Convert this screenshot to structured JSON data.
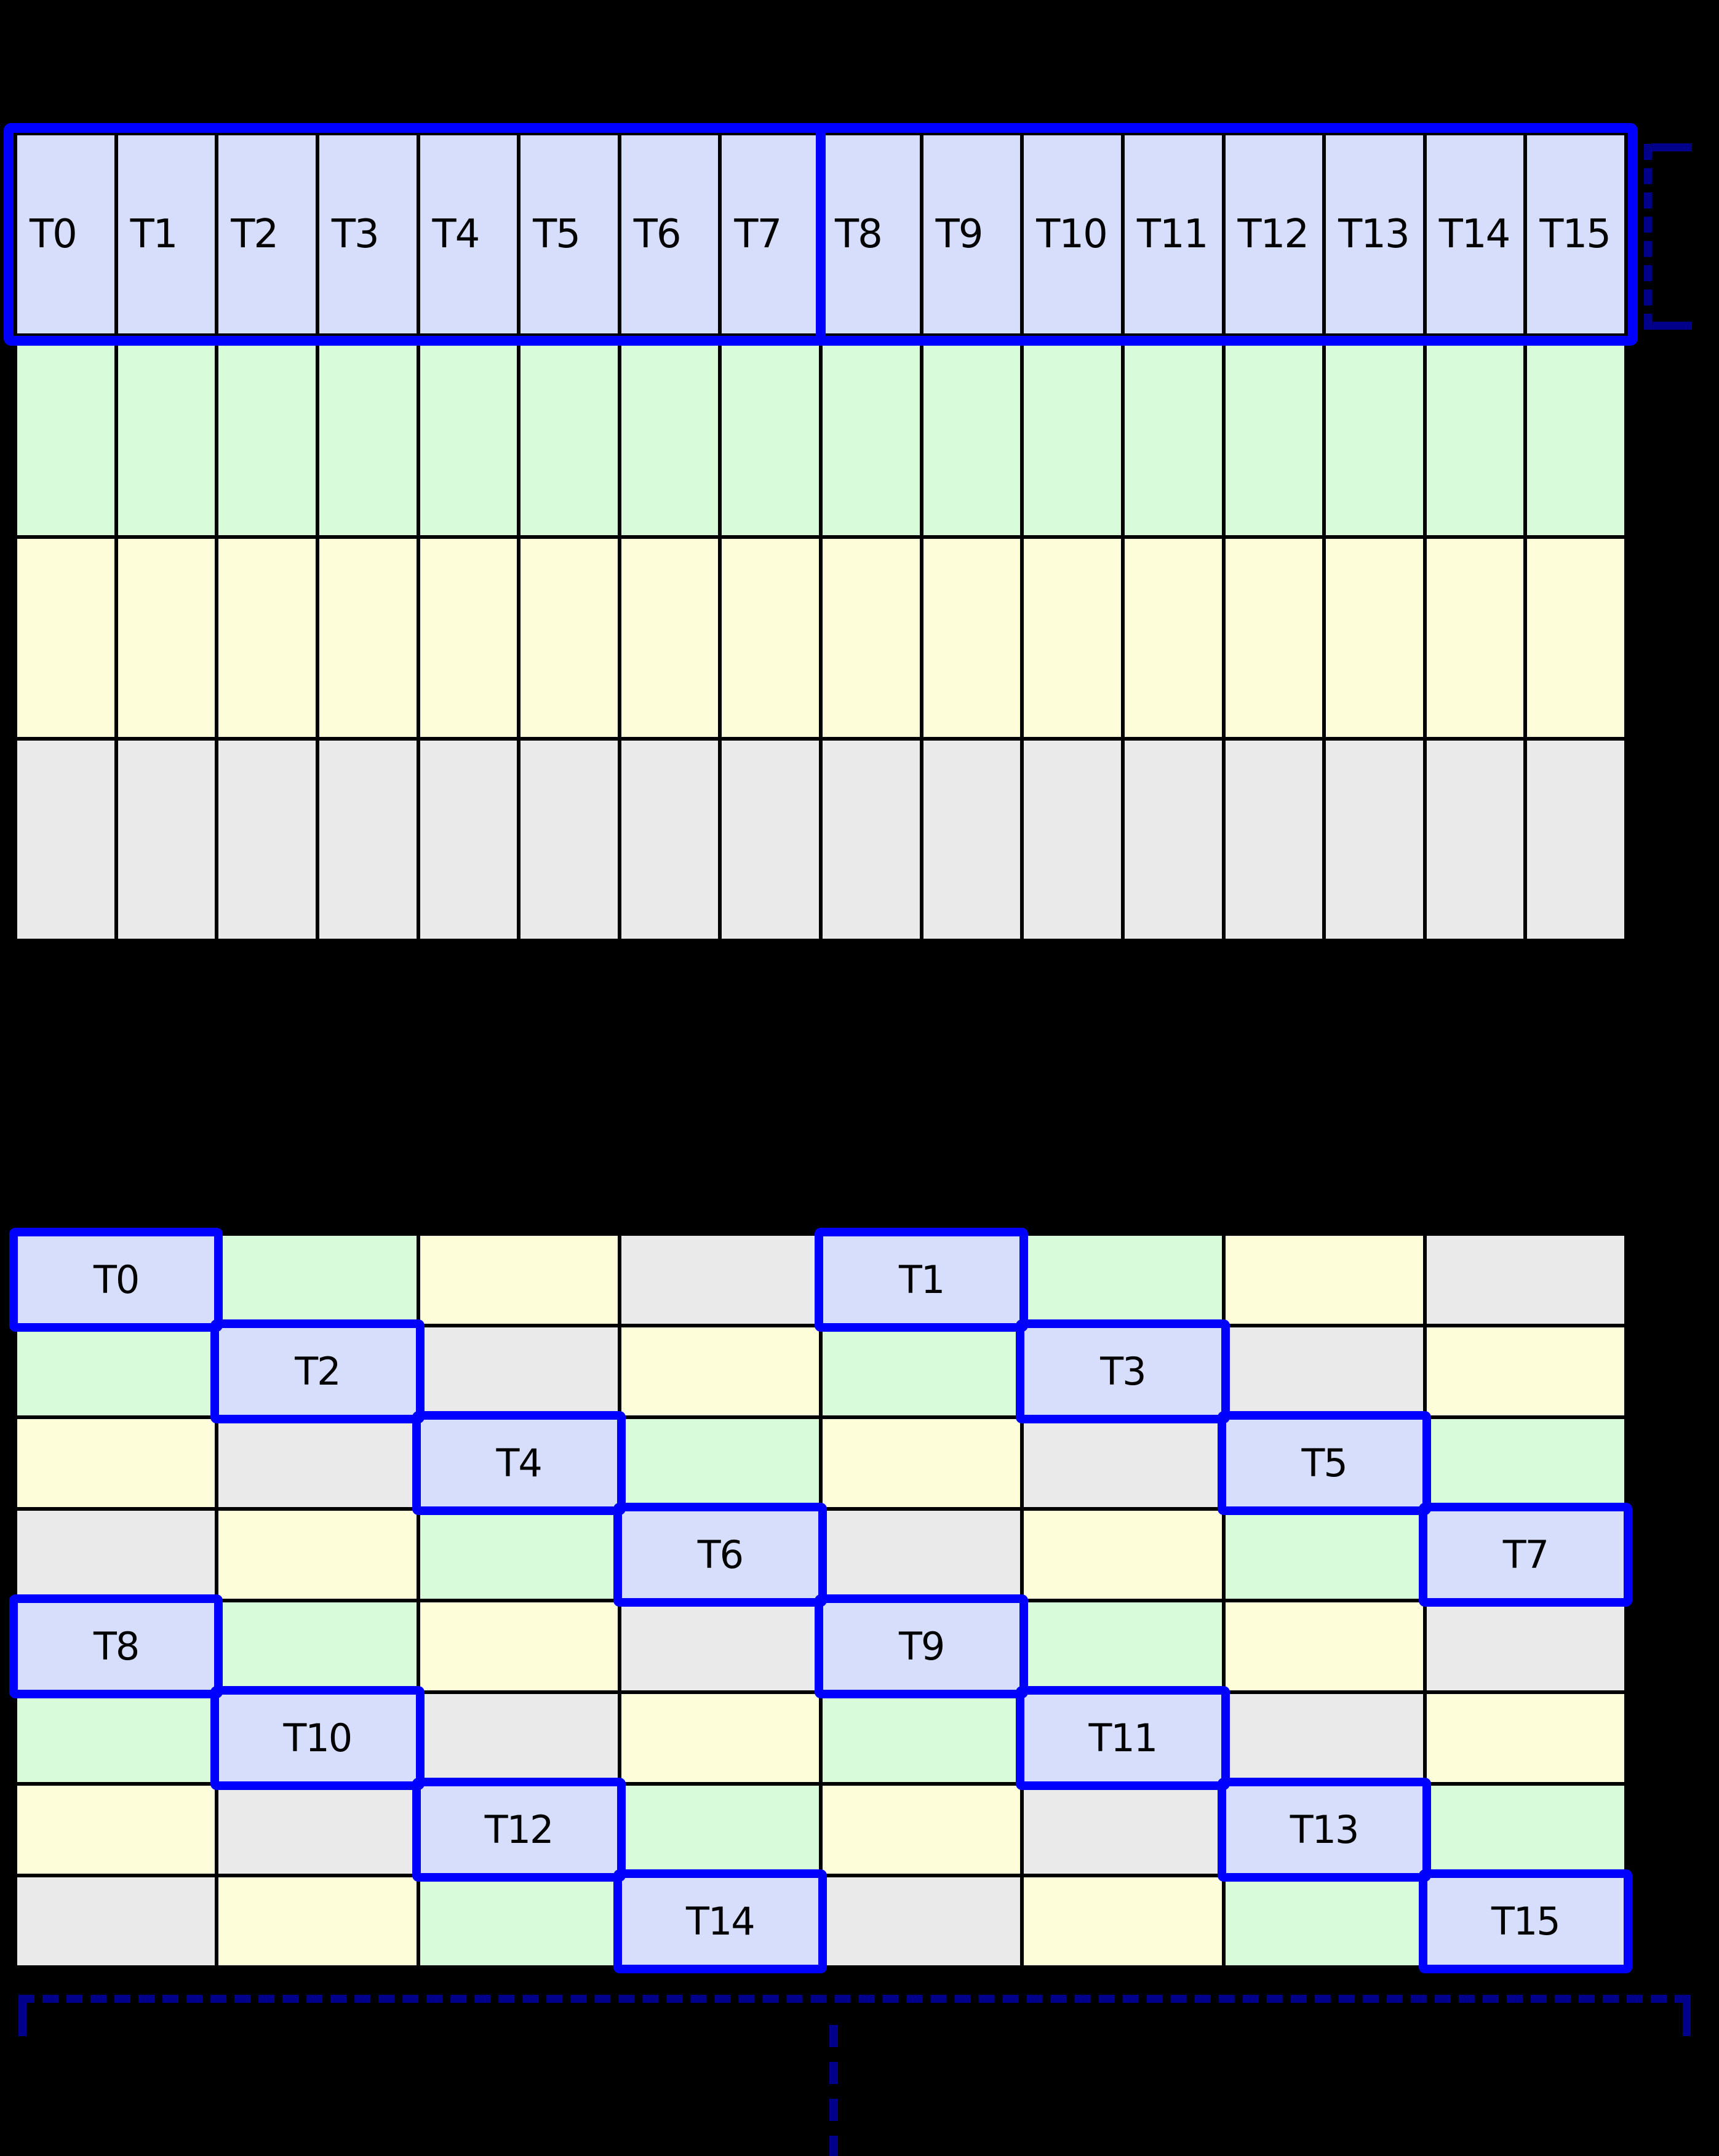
{
  "colors": {
    "background": "#000000",
    "gridline": "#000000",
    "thread": "#D6DEFB",
    "green": "#D8FCD9",
    "yellow": "#FDFDDA",
    "gray": "#EAEAEA",
    "highlight": "#0000FF",
    "bracket": "#00008B",
    "label_text": "#000000"
  },
  "thread_labels": [
    "T0",
    "T1",
    "T2",
    "T3",
    "T4",
    "T5",
    "T6",
    "T7",
    "T8",
    "T9",
    "T10",
    "T11",
    "T12",
    "T13",
    "T14",
    "T15"
  ],
  "top_grid": {
    "cols": 16,
    "rows": 4,
    "row_colors": [
      "thread",
      "green",
      "yellow",
      "gray"
    ],
    "labeled_row": 0,
    "highlight_outline_row": 0,
    "highlight_divider_after_col": 8
  },
  "bottom_grid": {
    "cols": 8,
    "rows": 8,
    "legend": {
      "G": "green",
      "Y": "yellow",
      "X": "gray"
    },
    "rows_cells": [
      [
        "T0",
        "G",
        "Y",
        "X",
        "T1",
        "G",
        "Y",
        "X"
      ],
      [
        "G",
        "T2",
        "X",
        "Y",
        "G",
        "T3",
        "X",
        "Y"
      ],
      [
        "Y",
        "X",
        "T4",
        "G",
        "Y",
        "X",
        "T5",
        "G"
      ],
      [
        "X",
        "Y",
        "G",
        "T6",
        "X",
        "Y",
        "G",
        "T7"
      ],
      [
        "T8",
        "G",
        "Y",
        "X",
        "T9",
        "G",
        "Y",
        "X"
      ],
      [
        "G",
        "T10",
        "X",
        "Y",
        "G",
        "T11",
        "X",
        "Y"
      ],
      [
        "Y",
        "X",
        "T12",
        "G",
        "Y",
        "X",
        "T13",
        "G"
      ],
      [
        "X",
        "Y",
        "G",
        "T14",
        "X",
        "Y",
        "G",
        "T15"
      ]
    ]
  },
  "annotations": {
    "right_row_bracket": true,
    "bottom_span_bracket": true,
    "vertical_continuation_dashes": true
  }
}
